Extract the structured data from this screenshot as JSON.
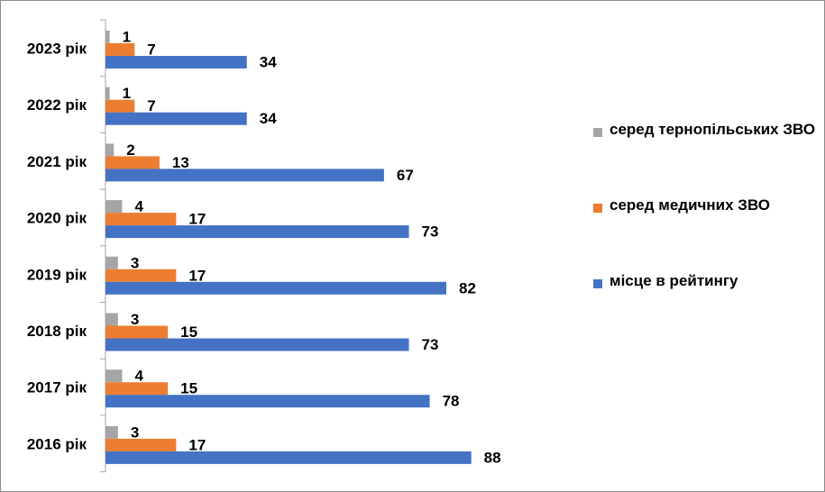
{
  "chart_data": {
    "type": "bar",
    "orientation": "horizontal",
    "categories": [
      "2023 рік",
      "2022 рік",
      "2021 рік",
      "2020 рік",
      "2019 рік",
      "2018 рік",
      "2017 рік",
      "2016 рік"
    ],
    "series": [
      {
        "name": "серед тернопільських ЗВО",
        "color": "#a5a5a5",
        "values": [
          1,
          1,
          2,
          4,
          3,
          3,
          4,
          3
        ]
      },
      {
        "name": "серед медичних ЗВО",
        "color": "#ed7d31",
        "values": [
          7,
          7,
          13,
          17,
          17,
          15,
          15,
          17
        ]
      },
      {
        "name": "місце в рейтингу",
        "color": "#4472c4",
        "values": [
          34,
          34,
          67,
          73,
          82,
          73,
          78,
          88
        ]
      }
    ],
    "legend": "right"
  }
}
